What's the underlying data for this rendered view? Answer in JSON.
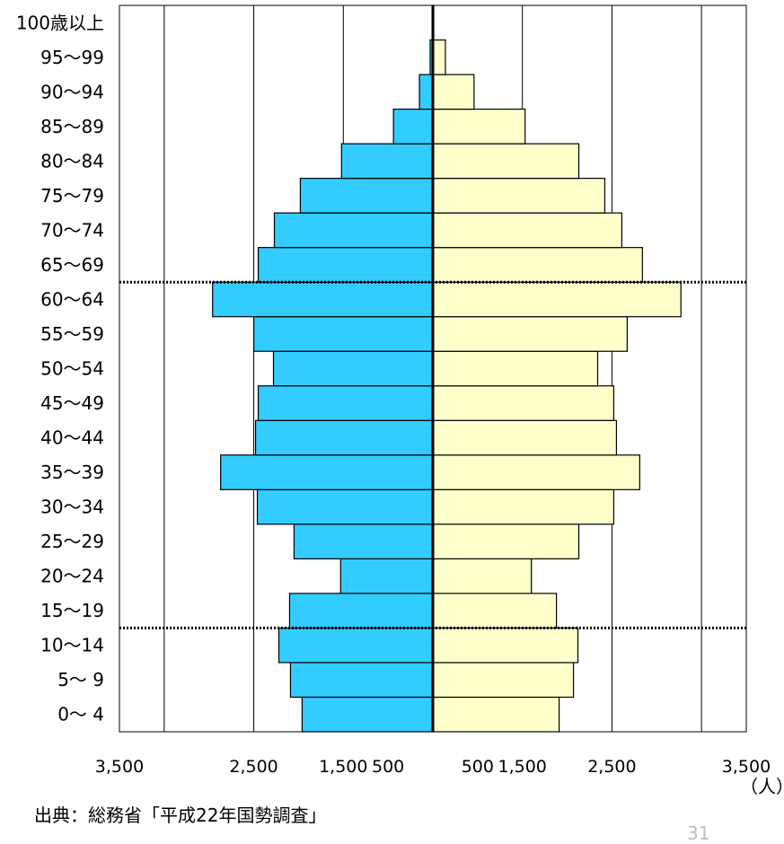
{
  "chart_data": {
    "type": "bar",
    "orientation": "population-pyramid",
    "categories": [
      "0～ 4",
      "5～ 9",
      "10～14",
      "15～19",
      "20～24",
      "25～29",
      "30～34",
      "35～39",
      "40～44",
      "45～49",
      "50～54",
      "55～59",
      "60～64",
      "65～69",
      "70～74",
      "75～79",
      "80～84",
      "85～89",
      "90～94",
      "95～99",
      "100歳以上"
    ],
    "series": [
      {
        "side": "left",
        "color": "#33ccff",
        "values": [
          1460,
          1590,
          1720,
          1600,
          1030,
          1550,
          1960,
          2370,
          1980,
          1950,
          1780,
          2000,
          2460,
          1950,
          1770,
          1480,
          1020,
          440,
          150,
          30,
          5
        ]
      },
      {
        "side": "right",
        "color": "#ffffcc",
        "values": [
          1410,
          1570,
          1620,
          1380,
          1100,
          1630,
          2020,
          2310,
          2050,
          2020,
          1840,
          2170,
          2770,
          2340,
          2110,
          1920,
          1630,
          1030,
          460,
          140,
          10
        ]
      }
    ],
    "x_tick_labels": [
      "3,500",
      "2,500",
      "1,500",
      "500",
      "500",
      "1,500",
      "2,500",
      "3,500"
    ],
    "xlim": [
      -3500,
      3500
    ],
    "unit_label": "（人）",
    "divider_lines_between": [
      "10～14|15～19",
      "60～64|65～69"
    ],
    "grid": true
  },
  "source": "出典：総務省「平成22年国勢調査」",
  "page_number": "31"
}
